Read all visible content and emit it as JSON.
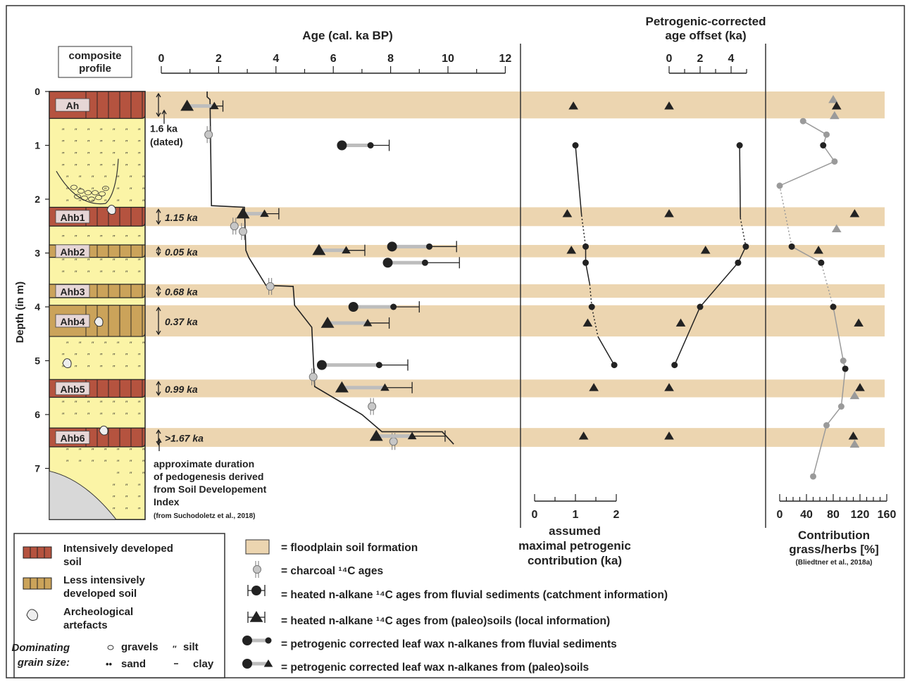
{
  "chart_data": {
    "type": "scatter",
    "profile": {
      "header": [
        "composite",
        "profile"
      ],
      "depth_label": "Depth (in m)",
      "depth_ticks": [
        0,
        1,
        2,
        3,
        4,
        5,
        6,
        7
      ],
      "depth_range": [
        0,
        7.9
      ],
      "soils": [
        {
          "name": "Ah",
          "top": 0.0,
          "bottom": 0.5,
          "kind": "intensive",
          "duration": ""
        },
        {
          "name": "Ahb1",
          "top": 2.15,
          "bottom": 2.5,
          "kind": "intensive",
          "duration": "1.15 ka"
        },
        {
          "name": "Ahb2",
          "top": 2.85,
          "bottom": 3.08,
          "kind": "less",
          "duration": "0.05 ka"
        },
        {
          "name": "Ahb3",
          "top": 3.58,
          "bottom": 3.83,
          "kind": "less",
          "duration": "0.68 ka"
        },
        {
          "name": "Ahb4",
          "top": 3.97,
          "bottom": 4.55,
          "kind": "less",
          "duration": "0.37 ka"
        },
        {
          "name": "Ahb5",
          "top": 5.35,
          "bottom": 5.68,
          "kind": "intensive",
          "duration": "0.99 ka"
        },
        {
          "name": "Ahb6",
          "top": 6.25,
          "bottom": 6.6,
          "kind": "intensive",
          "duration": ">1.67 ka"
        }
      ],
      "note_ah": [
        "1.6 ka",
        "(dated)"
      ],
      "note_duration": [
        "approximate duration",
        "of pedogenesis derived",
        "from Soil Developement",
        "Index"
      ],
      "note_source": "(from Suchodoletz et al., 2018)"
    },
    "age_panel": {
      "xlabel": "Age (cal. ka BP)",
      "xticks": [
        0,
        2,
        4,
        6,
        8,
        10,
        12
      ],
      "xlim": [
        0,
        12
      ],
      "age_depth_model": [
        [
          1.6,
          0.0
        ],
        [
          1.6,
          0.1
        ],
        [
          1.7,
          0.15
        ],
        [
          1.75,
          2.12
        ],
        [
          2.9,
          2.15
        ],
        [
          2.95,
          2.95
        ],
        [
          3.05,
          3.08
        ],
        [
          3.65,
          3.6
        ],
        [
          4.6,
          3.62
        ],
        [
          4.65,
          3.97
        ],
        [
          5.25,
          4.38
        ],
        [
          5.35,
          5.48
        ],
        [
          7.0,
          6.0
        ],
        [
          7.7,
          6.32
        ],
        [
          9.8,
          6.32
        ],
        [
          10.2,
          6.55
        ]
      ],
      "charcoal": [
        {
          "depth": 0.8,
          "age": 1.65
        },
        {
          "depth": 2.5,
          "age": 2.55
        },
        {
          "depth": 2.6,
          "age": 2.85
        },
        {
          "depth": 3.62,
          "age": 3.8
        },
        {
          "depth": 5.3,
          "age": 5.3
        },
        {
          "depth": 5.85,
          "age": 7.35
        },
        {
          "depth": 6.5,
          "age": 8.1
        }
      ],
      "fluvial": [
        {
          "depth": 1.0,
          "age": 6.3,
          "corrected": 7.3,
          "max": 7.95
        },
        {
          "depth": 2.88,
          "age": 8.05,
          "corrected": 9.35,
          "max": 10.3
        },
        {
          "depth": 3.18,
          "age": 7.9,
          "corrected": 9.2,
          "max": 10.4
        },
        {
          "depth": 4.0,
          "age": 6.7,
          "corrected": 8.1,
          "max": 9.0
        },
        {
          "depth": 5.08,
          "age": 5.6,
          "corrected": 7.6,
          "max": 8.6
        }
      ],
      "paleosol": [
        {
          "depth": 0.27,
          "age": 0.9,
          "corrected": 1.85,
          "max": 2.15
        },
        {
          "depth": 2.27,
          "age": 2.85,
          "corrected": 3.6,
          "max": 4.1
        },
        {
          "depth": 2.95,
          "age": 5.5,
          "corrected": 6.45,
          "max": 7.1
        },
        {
          "depth": 4.3,
          "age": 5.8,
          "corrected": 7.2,
          "max": 7.95
        },
        {
          "depth": 5.5,
          "age": 6.3,
          "corrected": 7.8,
          "max": 8.75
        },
        {
          "depth": 6.4,
          "age": 7.5,
          "corrected": 8.75,
          "max": 9.9
        }
      ]
    },
    "petrogenic_panel": {
      "xlabel": [
        "assumed",
        "maximal petrogenic",
        "contribution (ka)"
      ],
      "xticks": [
        0,
        1,
        2
      ],
      "xlim": [
        0,
        2
      ],
      "fluvial": [
        [
          1.0,
          1.0
        ],
        [
          1.25,
          2.88
        ],
        [
          1.25,
          3.18
        ],
        [
          1.4,
          4.0
        ],
        [
          1.95,
          5.08
        ]
      ],
      "paleosol": [
        [
          0.95,
          0.27
        ],
        [
          0.8,
          2.27
        ],
        [
          0.9,
          2.95
        ],
        [
          1.3,
          4.3
        ],
        [
          1.45,
          5.5
        ],
        [
          1.2,
          6.4
        ]
      ]
    },
    "offset_panel": {
      "xlabel": [
        "Petrogenic-corrected",
        "age offset (ka)"
      ],
      "xticks": [
        0,
        2,
        4
      ],
      "xlim": [
        0,
        5
      ],
      "fluvial": [
        [
          4.55,
          1.0
        ],
        [
          4.95,
          2.88
        ],
        [
          4.45,
          3.18
        ],
        [
          2.0,
          4.0
        ],
        [
          0.35,
          5.08
        ]
      ],
      "paleosol": [
        [
          0.0,
          0.27
        ],
        [
          0.0,
          2.27
        ],
        [
          2.35,
          2.95
        ],
        [
          0.75,
          4.3
        ],
        [
          0.0,
          5.5
        ],
        [
          0.0,
          6.4
        ]
      ]
    },
    "grass_panel": {
      "xlabel": [
        "Contribution",
        "grass/herbs [%]"
      ],
      "source": "(Bliedtner et al., 2018a)",
      "xticks": [
        0,
        40,
        80,
        120,
        160
      ],
      "xlim": [
        0,
        160
      ],
      "fluvial_points": [
        [
          35,
          0.55
        ],
        [
          70,
          0.8
        ],
        [
          65,
          1.0
        ],
        [
          82,
          1.3
        ],
        [
          0,
          1.75
        ],
        [
          18,
          2.88
        ],
        [
          62,
          3.18
        ],
        [
          80,
          4.0
        ],
        [
          95,
          5.0
        ],
        [
          98,
          5.15
        ],
        [
          92,
          5.85
        ],
        [
          70,
          6.2
        ],
        [
          50,
          7.15
        ]
      ],
      "fluvial_black_depths": [
        1.0,
        2.88,
        3.18,
        4.0,
        5.15
      ],
      "paleosol_black": [
        [
          85,
          0.27
        ],
        [
          112,
          2.27
        ],
        [
          58,
          2.95
        ],
        [
          118,
          4.3
        ],
        [
          120,
          5.5
        ],
        [
          110,
          6.4
        ]
      ],
      "paleosol_grey": [
        [
          80,
          0.15
        ],
        [
          82,
          0.45
        ],
        [
          85,
          2.55
        ],
        [
          112,
          5.65
        ],
        [
          112,
          6.55
        ]
      ]
    },
    "legend": {
      "box1": [
        {
          "icon": "intensive-soil-icon",
          "label": [
            "Intensively developed",
            "soil"
          ]
        },
        {
          "icon": "less-soil-icon",
          "label": [
            "Less intensively",
            "developed soil"
          ]
        },
        {
          "icon": "artefact-icon",
          "label": [
            "Archeological",
            "artefacts"
          ]
        }
      ],
      "grain_title": [
        "Dominating",
        "grain size:"
      ],
      "grain": [
        "gravels",
        "silt",
        "sand",
        "clay"
      ],
      "box2": [
        {
          "icon": "floodplain-swatch-icon",
          "label": "= floodplain soil formation"
        },
        {
          "icon": "charcoal-icon",
          "label": "= charcoal ¹⁴C ages"
        },
        {
          "icon": "fluvial-alkane-icon",
          "label": "= heated n-alkane ¹⁴C ages from fluvial sediments (catchment information)"
        },
        {
          "icon": "paleosol-alkane-icon",
          "label": "= heated n-alkane ¹⁴C ages from (paleo)soils (local information)"
        },
        {
          "icon": "corrected-fluvial-icon",
          "label": "= petrogenic corrected leaf wax n-alkanes from fluvial sediments"
        },
        {
          "icon": "corrected-paleosol-icon",
          "label": "= petrogenic corrected leaf wax n-alkanes from (paleo)soils"
        }
      ]
    },
    "colors": {
      "band": "#ecd5b0",
      "intensive": "#b5533f",
      "less": "#cba35a",
      "sediment": "#fbf4a6",
      "bedrock": "#d8d8d8",
      "grey_marker": "#9a9a9a",
      "black_marker": "#222222"
    }
  }
}
